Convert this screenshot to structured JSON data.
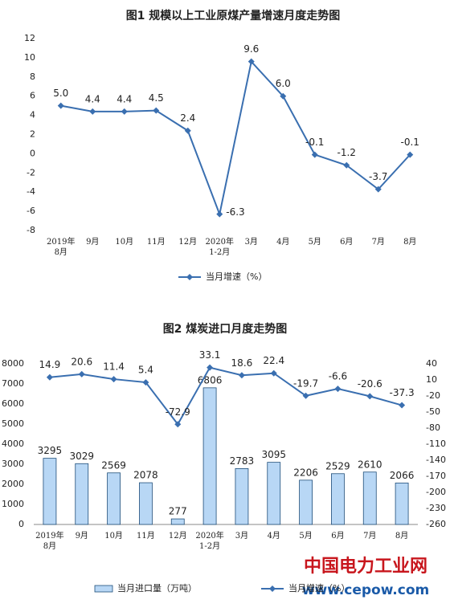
{
  "chart_data": [
    {
      "type": "line",
      "title": "图1  规模以上工业原煤产量增速月度走势图",
      "categories": [
        "2019年\n8月",
        "9月",
        "10月",
        "11月",
        "12月",
        "2020年\n1-2月",
        "3月",
        "4月",
        "5月",
        "6月",
        "7月",
        "8月"
      ],
      "series": [
        {
          "name": "当月增速（%）",
          "color": "#3a6fb0",
          "type": "line",
          "values": [
            5.0,
            4.4,
            4.4,
            4.5,
            2.4,
            -6.3,
            9.6,
            6.0,
            -0.1,
            -1.2,
            -3.7,
            -0.1
          ],
          "value_labels": [
            "5.0",
            "4.4",
            "4.4",
            "4.5",
            "2.4",
            "-6.3",
            "9.6",
            "6.0",
            "-0.1",
            "-1.2",
            "-3.7",
            "-0.1"
          ]
        }
      ],
      "ylim": [
        -8,
        12
      ],
      "yticks": [
        -8,
        -6,
        -4,
        -2,
        0,
        2,
        4,
        6,
        8,
        10,
        12
      ],
      "grid": false
    },
    {
      "type": "bar",
      "title": "图2  煤炭进口月度走势图",
      "categories": [
        "2019年\n8月",
        "9月",
        "10月",
        "11月",
        "12月",
        "2020年\n1-2月",
        "3月",
        "4月",
        "5月",
        "6月",
        "7月",
        "8月"
      ],
      "series": [
        {
          "name": "当月进口量（万吨）",
          "color": "#b8d7f5",
          "type": "bar",
          "values": [
            3295,
            3029,
            2569,
            2078,
            277,
            6806,
            2783,
            3095,
            2206,
            2529,
            2610,
            2066
          ]
        },
        {
          "name": "当月增速（%）",
          "color": "#3a6fb0",
          "type": "line",
          "axis": "y2",
          "values": [
            14.9,
            20.6,
            11.4,
            5.4,
            -72.9,
            33.1,
            18.6,
            22.4,
            -19.7,
            -6.6,
            -20.6,
            -37.3
          ]
        }
      ],
      "ylim": [
        0,
        8000
      ],
      "yticks": [
        0,
        1000,
        2000,
        3000,
        4000,
        5000,
        6000,
        7000,
        8000
      ],
      "y2lim": [
        -260,
        40
      ],
      "y2ticks": [
        -260,
        -230,
        -200,
        -170,
        -140,
        -110,
        -80,
        -50,
        -20,
        10,
        40
      ],
      "grid": false
    }
  ],
  "watermark": {
    "title": "中国电力工业网",
    "url": "www.cepow.com"
  }
}
